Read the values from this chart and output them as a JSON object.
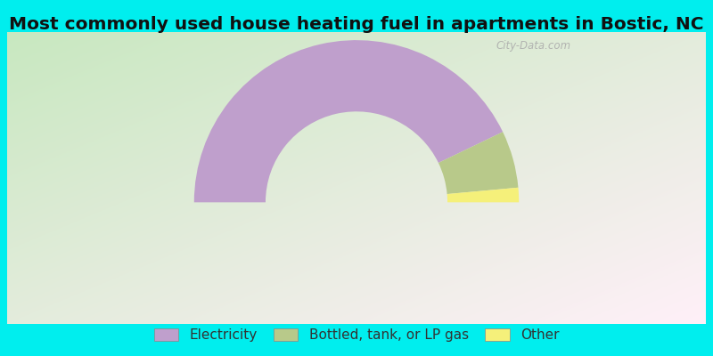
{
  "title": "Most commonly used house heating fuel in apartments in Bostic, NC",
  "slices": [
    {
      "label": "Electricity",
      "value": 85.7,
      "color": "#bf9fcc"
    },
    {
      "label": "Bottled, tank, or LP gas",
      "value": 11.4,
      "color": "#b8c98a"
    },
    {
      "label": "Other",
      "value": 2.9,
      "color": "#f5f07a"
    }
  ],
  "background_color": "#00eeee",
  "title_fontsize": 14.5,
  "legend_fontsize": 11,
  "watermark": "City-Data.com"
}
